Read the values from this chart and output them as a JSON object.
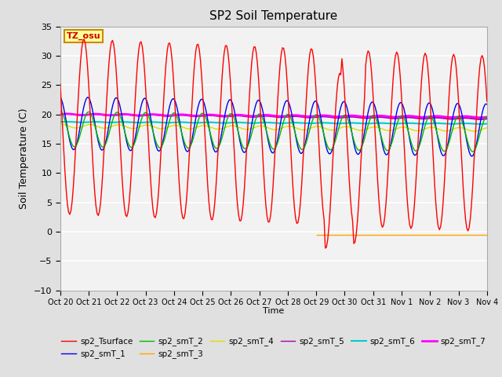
{
  "title": "SP2 Soil Temperature",
  "ylabel": "Soil Temperature (C)",
  "xlabel": "Time",
  "ylim": [
    -10,
    35
  ],
  "yticks": [
    -10,
    -5,
    0,
    5,
    10,
    15,
    20,
    25,
    30,
    35
  ],
  "xtick_labels": [
    "Oct 20",
    "Oct 21",
    "Oct 22",
    "Oct 23",
    "Oct 24",
    "Oct 25",
    "Oct 26",
    "Oct 27",
    "Oct 28",
    "Oct 29",
    "Oct 30",
    "Oct 31",
    "Nov 1",
    "Nov 2",
    "Nov 3",
    "Nov 4"
  ],
  "timezone_label": "TZ_osu",
  "colors": {
    "sp2_Tsurface": "#FF0000",
    "sp2_smT_1": "#0000EE",
    "sp2_smT_2": "#00BB00",
    "sp2_smT_3": "#FFA500",
    "sp2_smT_4": "#DDDD00",
    "sp2_smT_5": "#AA00AA",
    "sp2_smT_6": "#00CCCC",
    "sp2_smT_7": "#FF00FF"
  },
  "bg_color": "#E0E0E0",
  "plot_bg_color": "#F2F2F2",
  "grid_color": "#FFFFFF",
  "n_days": 15,
  "n_pts": 360
}
